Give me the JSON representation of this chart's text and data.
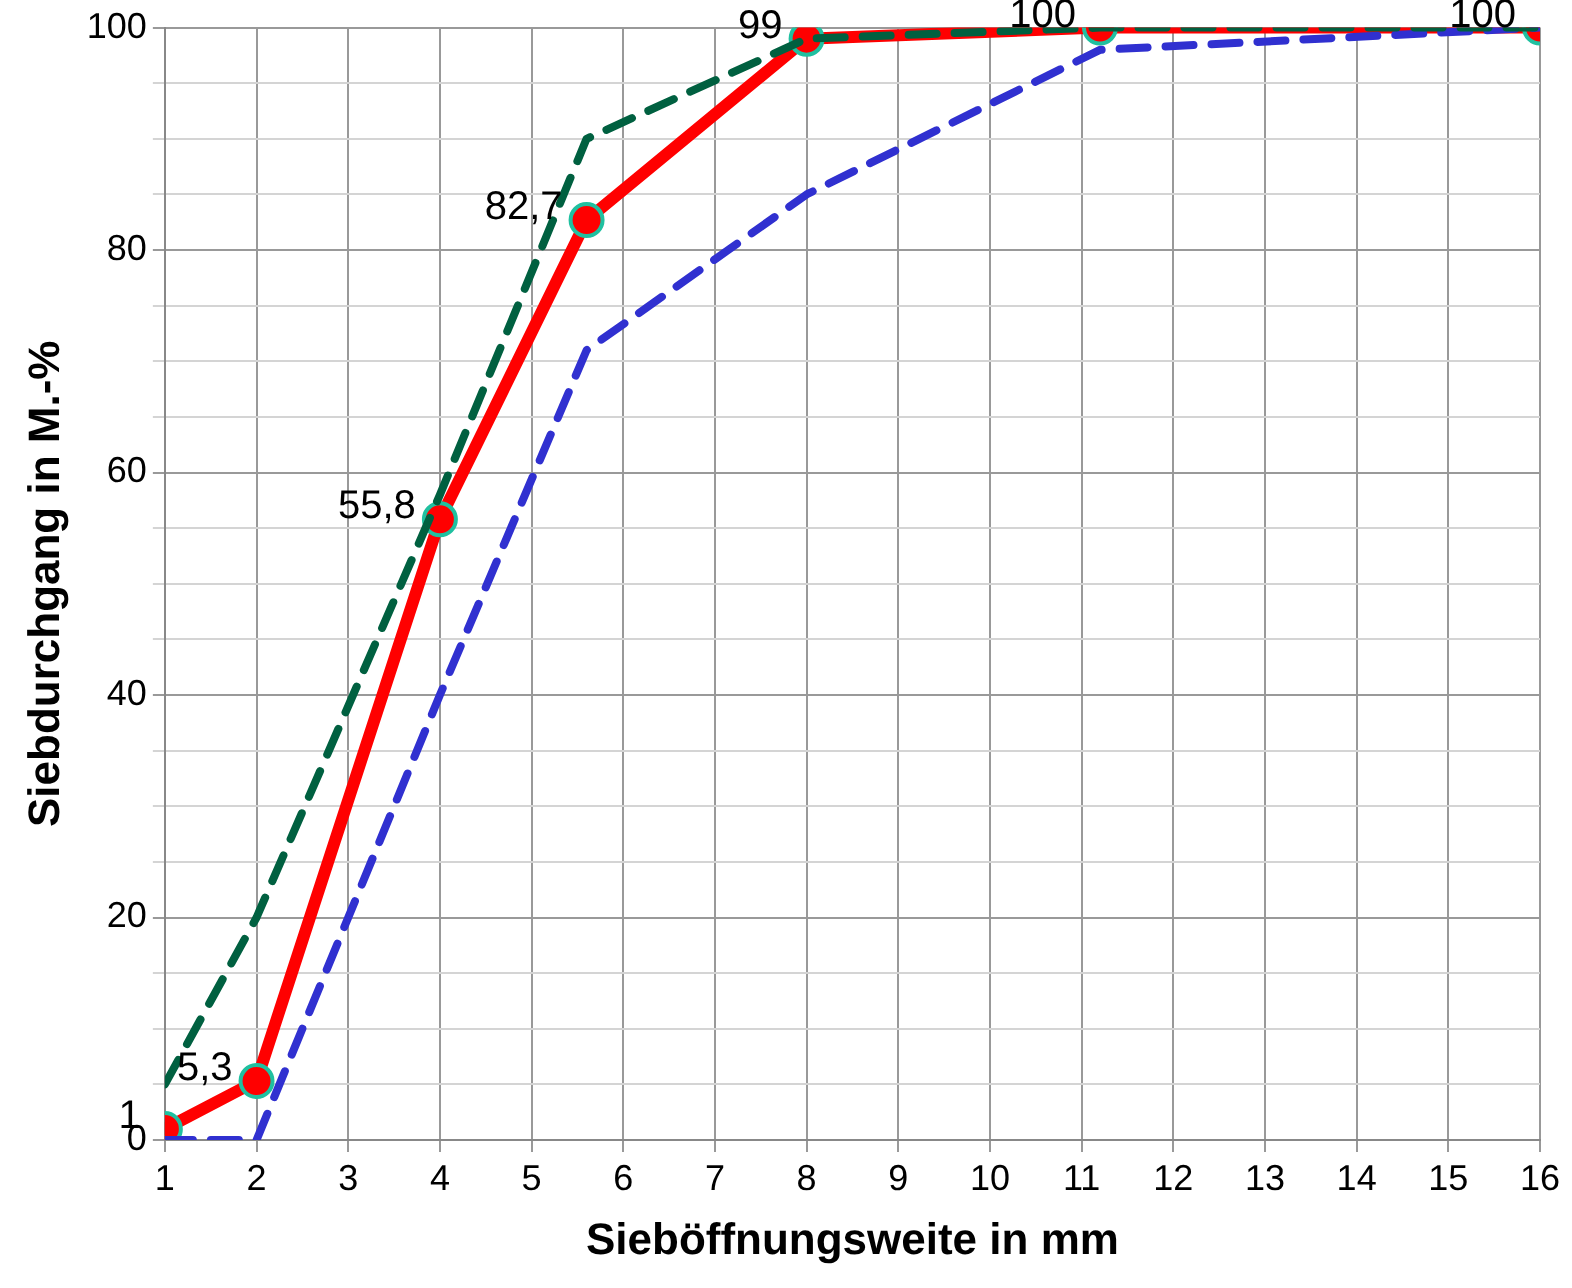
{
  "chart_data": {
    "type": "line",
    "xlabel": "Sieböffnungsweite in mm",
    "ylabel": "Siebdurchgang in M.-%",
    "xlim": [
      1,
      16
    ],
    "xticks": [
      1,
      2,
      3,
      4,
      5,
      6,
      7,
      8,
      9,
      10,
      11,
      12,
      13,
      14,
      15,
      16
    ],
    "ylim": [
      0,
      100
    ],
    "yticks": [
      0,
      {
        "value": 5,
        "label": null
      },
      {
        "value": 10,
        "label": null
      },
      {
        "value": 15,
        "label": null
      },
      20,
      {
        "value": 25,
        "label": null
      },
      {
        "value": 30,
        "label": null
      },
      {
        "value": 35,
        "label": null
      },
      40,
      {
        "value": 45,
        "label": null
      },
      {
        "value": 50,
        "label": null
      },
      {
        "value": 55,
        "label": null
      },
      60,
      {
        "value": 65,
        "label": null
      },
      {
        "value": 70,
        "label": null
      },
      {
        "value": 75,
        "label": null
      },
      80,
      {
        "value": 85,
        "label": null
      },
      {
        "value": 90,
        "label": null
      },
      {
        "value": 95,
        "label": null
      },
      100
    ],
    "grid": true,
    "legend": false,
    "series": [
      {
        "color": "#006040",
        "line_style": "dashed",
        "marker": "none",
        "x": [
          1,
          2,
          4,
          5.6,
          8,
          11.2,
          16
        ],
        "values": [
          5,
          20,
          58,
          90,
          99,
          100,
          100
        ]
      },
      {
        "color": "#3030d0",
        "line_style": "dashed",
        "marker": "none",
        "x": [
          1,
          2,
          4,
          5.6,
          8,
          11.2,
          16
        ],
        "values": [
          0,
          0,
          40,
          71,
          85,
          98,
          100
        ]
      },
      {
        "color": "#ff0000",
        "line_style": "solid",
        "marker": "circle",
        "x": [
          1,
          2,
          4,
          5.6,
          8,
          11.2,
          16
        ],
        "values": [
          1,
          5.3,
          55.8,
          82.7,
          99,
          100,
          100
        ],
        "value_labels": [
          "1",
          "5,3",
          "55,8",
          "82,7",
          "99",
          "100",
          "100"
        ]
      }
    ]
  }
}
